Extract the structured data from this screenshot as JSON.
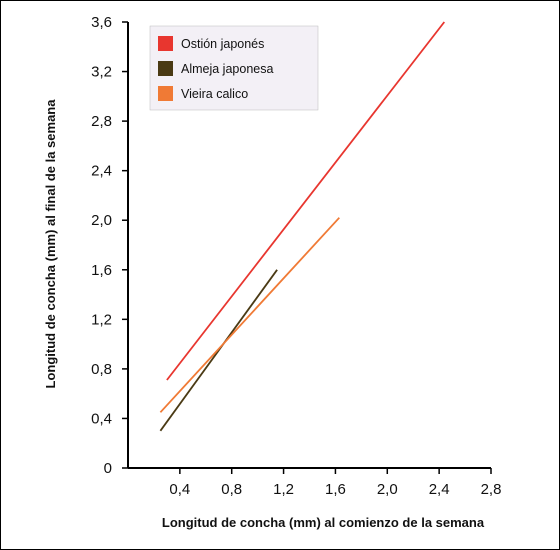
{
  "chart_data": {
    "type": "line",
    "xlabel": "Longitud de concha (mm) al comienzo de la semana",
    "ylabel": "Longitud de concha (mm) al final de la semana",
    "xlim": [
      0,
      2.8
    ],
    "ylim": [
      0,
      3.6
    ],
    "x_ticks": [
      "0,4",
      "0,8",
      "1,2",
      "1,6",
      "2,0",
      "2,4",
      "2,8"
    ],
    "y_ticks": [
      "0",
      "0,4",
      "0,8",
      "1,2",
      "1,6",
      "2,0",
      "2,4",
      "2,8",
      "3,2",
      "3,6"
    ],
    "legend_position": "top-left",
    "grid": false,
    "series": [
      {
        "name": "Ostión japonés",
        "color": "#e8362f",
        "x": [
          0.3,
          2.44
        ],
        "y": [
          0.71,
          3.6
        ]
      },
      {
        "name": "Almeja japonesa",
        "color": "#4a3a14",
        "x": [
          0.25,
          1.15
        ],
        "y": [
          0.3,
          1.6
        ]
      },
      {
        "name": "Vieira calico",
        "color": "#f07a35",
        "x": [
          0.25,
          1.63
        ],
        "y": [
          0.45,
          2.02
        ]
      }
    ]
  }
}
